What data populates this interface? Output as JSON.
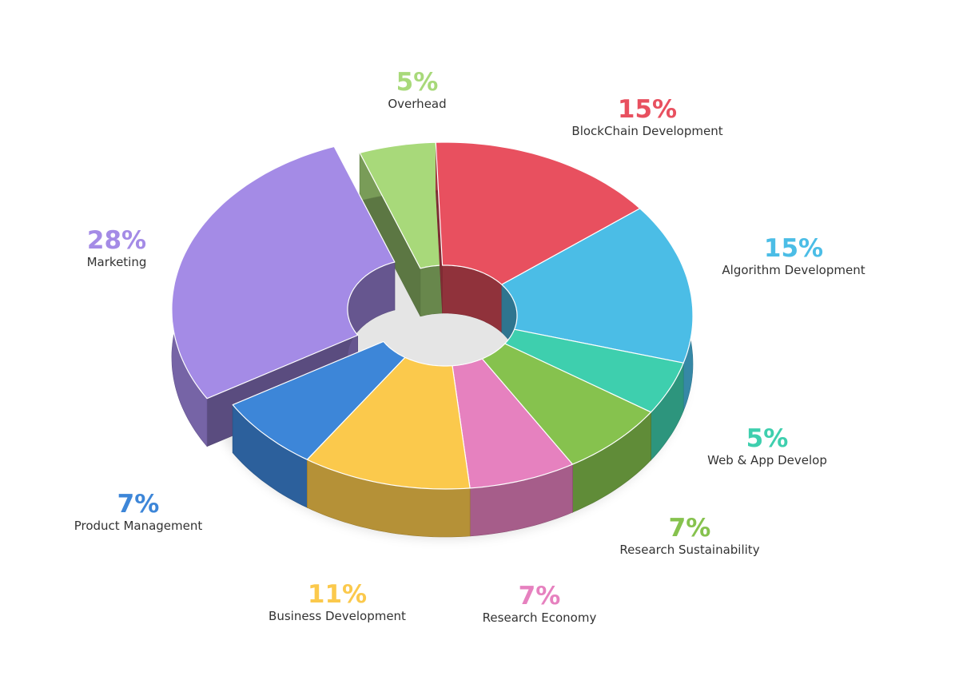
{
  "chart_data": {
    "type": "pie",
    "variant": "3d-donut-exploded",
    "title": "",
    "slices": [
      {
        "label": "Overhead",
        "value": 5,
        "value_label": "5%",
        "color": "#a8d97a"
      },
      {
        "label": "BlockChain Development",
        "value": 15,
        "value_label": "15%",
        "color": "#e8505f"
      },
      {
        "label": "Algorithm Development",
        "value": 15,
        "value_label": "15%",
        "color": "#4bbde6"
      },
      {
        "label": "Web & App Develop",
        "value": 5,
        "value_label": "5%",
        "color": "#3ecfae"
      },
      {
        "label": "Research Sustainability",
        "value": 7,
        "value_label": "7%",
        "color": "#86c24e"
      },
      {
        "label": "Research Economy",
        "value": 7,
        "value_label": "7%",
        "color": "#e681bf"
      },
      {
        "label": "Business Development",
        "value": 11,
        "value_label": "11%",
        "color": "#fbc94c"
      },
      {
        "label": "Product Management",
        "value": 7,
        "value_label": "7%",
        "color": "#3d86d8"
      },
      {
        "label": "Marketing",
        "value": 28,
        "value_label": "28%",
        "color": "#a48be6"
      }
    ],
    "legend": "none",
    "labels": "outside"
  }
}
